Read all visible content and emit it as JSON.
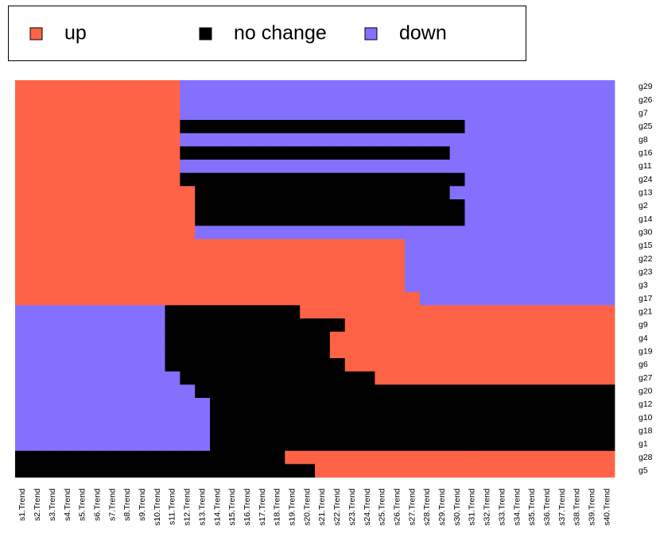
{
  "chart_data": {
    "type": "heatmap",
    "series": [
      {
        "name": "up",
        "color": "#FF6347"
      },
      {
        "name": "no change",
        "color": "#000000"
      },
      {
        "name": "down",
        "color": "#8470FF"
      }
    ],
    "rows": [
      "g29",
      "g26",
      "g7",
      "g25",
      "g8",
      "g16",
      "g11",
      "g24",
      "g13",
      "g2",
      "g14",
      "g30",
      "g15",
      "g22",
      "g23",
      "g3",
      "g17",
      "g21",
      "g9",
      "g4",
      "g19",
      "g6",
      "g27",
      "g20",
      "g12",
      "g10",
      "g18",
      "g1",
      "g28",
      "g5"
    ],
    "columns": [
      "s1.Trend",
      "s2.Trend",
      "s3.Trend",
      "s4.Trend",
      "s5.Trend",
      "s6.Trend",
      "s7.Trend",
      "s8.Trend",
      "s9.Trend",
      "s10.Trend",
      "s11.Trend",
      "s12.Trend",
      "s13.Trend",
      "s14.Trend",
      "s15.Trend",
      "s16.Trend",
      "s17.Trend",
      "s18.Trend",
      "s19.Trend",
      "s20.Trend",
      "s21.Trend",
      "s22.Trend",
      "s23.Trend",
      "s24.Trend",
      "s25.Trend",
      "s26.Trend",
      "s27.Trend",
      "s28.Trend",
      "s29.Trend",
      "s30.Trend",
      "s31.Trend",
      "s32.Trend",
      "s33.Trend",
      "s34.Trend",
      "s35.Trend",
      "s36.Trend",
      "s37.Trend",
      "s38.Trend",
      "s39.Trend",
      "s40.Trend"
    ],
    "values": [
      [
        0,
        0,
        0,
        0,
        0,
        0,
        0,
        0,
        0,
        0,
        0,
        2,
        2,
        2,
        2,
        2,
        2,
        2,
        2,
        2,
        2,
        2,
        2,
        2,
        2,
        2,
        2,
        2,
        2,
        2,
        2,
        2,
        2,
        2,
        2,
        2,
        2,
        2,
        2,
        2
      ],
      [
        0,
        0,
        0,
        0,
        0,
        0,
        0,
        0,
        0,
        0,
        0,
        2,
        2,
        2,
        2,
        2,
        2,
        2,
        2,
        2,
        2,
        2,
        2,
        2,
        2,
        2,
        2,
        2,
        2,
        2,
        2,
        2,
        2,
        2,
        2,
        2,
        2,
        2,
        2,
        2
      ],
      [
        0,
        0,
        0,
        0,
        0,
        0,
        0,
        0,
        0,
        0,
        0,
        2,
        2,
        2,
        2,
        2,
        2,
        2,
        2,
        2,
        2,
        2,
        2,
        2,
        2,
        2,
        2,
        2,
        2,
        2,
        2,
        2,
        2,
        2,
        2,
        2,
        2,
        2,
        2,
        2
      ],
      [
        0,
        0,
        0,
        0,
        0,
        0,
        0,
        0,
        0,
        0,
        0,
        1,
        1,
        1,
        1,
        1,
        1,
        1,
        1,
        1,
        1,
        1,
        1,
        1,
        1,
        1,
        1,
        1,
        1,
        1,
        2,
        2,
        2,
        2,
        2,
        2,
        2,
        2,
        2,
        2
      ],
      [
        0,
        0,
        0,
        0,
        0,
        0,
        0,
        0,
        0,
        0,
        0,
        2,
        2,
        2,
        2,
        2,
        2,
        2,
        2,
        2,
        2,
        2,
        2,
        2,
        2,
        2,
        2,
        2,
        2,
        2,
        2,
        2,
        2,
        2,
        2,
        2,
        2,
        2,
        2,
        2
      ],
      [
        0,
        0,
        0,
        0,
        0,
        0,
        0,
        0,
        0,
        0,
        0,
        1,
        1,
        1,
        1,
        1,
        1,
        1,
        1,
        1,
        1,
        1,
        1,
        1,
        1,
        1,
        1,
        1,
        1,
        2,
        2,
        2,
        2,
        2,
        2,
        2,
        2,
        2,
        2,
        2
      ],
      [
        0,
        0,
        0,
        0,
        0,
        0,
        0,
        0,
        0,
        0,
        0,
        2,
        2,
        2,
        2,
        2,
        2,
        2,
        2,
        2,
        2,
        2,
        2,
        2,
        2,
        2,
        2,
        2,
        2,
        2,
        2,
        2,
        2,
        2,
        2,
        2,
        2,
        2,
        2,
        2
      ],
      [
        0,
        0,
        0,
        0,
        0,
        0,
        0,
        0,
        0,
        0,
        0,
        1,
        1,
        1,
        1,
        1,
        1,
        1,
        1,
        1,
        1,
        1,
        1,
        1,
        1,
        1,
        1,
        1,
        1,
        1,
        2,
        2,
        2,
        2,
        2,
        2,
        2,
        2,
        2,
        2
      ],
      [
        0,
        0,
        0,
        0,
        0,
        0,
        0,
        0,
        0,
        0,
        0,
        0,
        1,
        1,
        1,
        1,
        1,
        1,
        1,
        1,
        1,
        1,
        1,
        1,
        1,
        1,
        1,
        1,
        1,
        2,
        2,
        2,
        2,
        2,
        2,
        2,
        2,
        2,
        2,
        2
      ],
      [
        0,
        0,
        0,
        0,
        0,
        0,
        0,
        0,
        0,
        0,
        0,
        0,
        1,
        1,
        1,
        1,
        1,
        1,
        1,
        1,
        1,
        1,
        1,
        1,
        1,
        1,
        1,
        1,
        1,
        1,
        2,
        2,
        2,
        2,
        2,
        2,
        2,
        2,
        2,
        2
      ],
      [
        0,
        0,
        0,
        0,
        0,
        0,
        0,
        0,
        0,
        0,
        0,
        0,
        1,
        1,
        1,
        1,
        1,
        1,
        1,
        1,
        1,
        1,
        1,
        1,
        1,
        1,
        1,
        1,
        1,
        1,
        2,
        2,
        2,
        2,
        2,
        2,
        2,
        2,
        2,
        2
      ],
      [
        0,
        0,
        0,
        0,
        0,
        0,
        0,
        0,
        0,
        0,
        0,
        0,
        2,
        2,
        2,
        2,
        2,
        2,
        2,
        2,
        2,
        2,
        2,
        2,
        2,
        2,
        2,
        2,
        2,
        2,
        2,
        2,
        2,
        2,
        2,
        2,
        2,
        2,
        2,
        2
      ],
      [
        0,
        0,
        0,
        0,
        0,
        0,
        0,
        0,
        0,
        0,
        0,
        0,
        0,
        0,
        0,
        0,
        0,
        0,
        0,
        0,
        0,
        0,
        0,
        0,
        0,
        0,
        2,
        2,
        2,
        2,
        2,
        2,
        2,
        2,
        2,
        2,
        2,
        2,
        2,
        2
      ],
      [
        0,
        0,
        0,
        0,
        0,
        0,
        0,
        0,
        0,
        0,
        0,
        0,
        0,
        0,
        0,
        0,
        0,
        0,
        0,
        0,
        0,
        0,
        0,
        0,
        0,
        0,
        2,
        2,
        2,
        2,
        2,
        2,
        2,
        2,
        2,
        2,
        2,
        2,
        2,
        2
      ],
      [
        0,
        0,
        0,
        0,
        0,
        0,
        0,
        0,
        0,
        0,
        0,
        0,
        0,
        0,
        0,
        0,
        0,
        0,
        0,
        0,
        0,
        0,
        0,
        0,
        0,
        0,
        2,
        2,
        2,
        2,
        2,
        2,
        2,
        2,
        2,
        2,
        2,
        2,
        2,
        2
      ],
      [
        0,
        0,
        0,
        0,
        0,
        0,
        0,
        0,
        0,
        0,
        0,
        0,
        0,
        0,
        0,
        0,
        0,
        0,
        0,
        0,
        0,
        0,
        0,
        0,
        0,
        0,
        2,
        2,
        2,
        2,
        2,
        2,
        2,
        2,
        2,
        2,
        2,
        2,
        2,
        2
      ],
      [
        0,
        0,
        0,
        0,
        0,
        0,
        0,
        0,
        0,
        0,
        0,
        0,
        0,
        0,
        0,
        0,
        0,
        0,
        0,
        0,
        0,
        0,
        0,
        0,
        0,
        0,
        0,
        2,
        2,
        2,
        2,
        2,
        2,
        2,
        2,
        2,
        2,
        2,
        2,
        2
      ],
      [
        2,
        2,
        2,
        2,
        2,
        2,
        2,
        2,
        2,
        2,
        1,
        1,
        1,
        1,
        1,
        1,
        1,
        1,
        1,
        0,
        0,
        0,
        0,
        0,
        0,
        0,
        0,
        0,
        0,
        0,
        0,
        0,
        0,
        0,
        0,
        0,
        0,
        0,
        0,
        0
      ],
      [
        2,
        2,
        2,
        2,
        2,
        2,
        2,
        2,
        2,
        2,
        1,
        1,
        1,
        1,
        1,
        1,
        1,
        1,
        1,
        1,
        1,
        1,
        0,
        0,
        0,
        0,
        0,
        0,
        0,
        0,
        0,
        0,
        0,
        0,
        0,
        0,
        0,
        0,
        0,
        0
      ],
      [
        2,
        2,
        2,
        2,
        2,
        2,
        2,
        2,
        2,
        2,
        1,
        1,
        1,
        1,
        1,
        1,
        1,
        1,
        1,
        1,
        1,
        0,
        0,
        0,
        0,
        0,
        0,
        0,
        0,
        0,
        0,
        0,
        0,
        0,
        0,
        0,
        0,
        0,
        0,
        0
      ],
      [
        2,
        2,
        2,
        2,
        2,
        2,
        2,
        2,
        2,
        2,
        1,
        1,
        1,
        1,
        1,
        1,
        1,
        1,
        1,
        1,
        1,
        0,
        0,
        0,
        0,
        0,
        0,
        0,
        0,
        0,
        0,
        0,
        0,
        0,
        0,
        0,
        0,
        0,
        0,
        0
      ],
      [
        2,
        2,
        2,
        2,
        2,
        2,
        2,
        2,
        2,
        2,
        1,
        1,
        1,
        1,
        1,
        1,
        1,
        1,
        1,
        1,
        1,
        1,
        0,
        0,
        0,
        0,
        0,
        0,
        0,
        0,
        0,
        0,
        0,
        0,
        0,
        0,
        0,
        0,
        0,
        0
      ],
      [
        2,
        2,
        2,
        2,
        2,
        2,
        2,
        2,
        2,
        2,
        2,
        1,
        1,
        1,
        1,
        1,
        1,
        1,
        1,
        1,
        1,
        1,
        1,
        1,
        0,
        0,
        0,
        0,
        0,
        0,
        0,
        0,
        0,
        0,
        0,
        0,
        0,
        0,
        0,
        0
      ],
      [
        2,
        2,
        2,
        2,
        2,
        2,
        2,
        2,
        2,
        2,
        2,
        2,
        1,
        1,
        1,
        1,
        1,
        1,
        1,
        1,
        1,
        1,
        1,
        1,
        1,
        1,
        1,
        1,
        1,
        1,
        1,
        1,
        1,
        1,
        1,
        1,
        1,
        1,
        1,
        1
      ],
      [
        2,
        2,
        2,
        2,
        2,
        2,
        2,
        2,
        2,
        2,
        2,
        2,
        2,
        1,
        1,
        1,
        1,
        1,
        1,
        1,
        1,
        1,
        1,
        1,
        1,
        1,
        1,
        1,
        1,
        1,
        1,
        1,
        1,
        1,
        1,
        1,
        1,
        1,
        1,
        1
      ],
      [
        2,
        2,
        2,
        2,
        2,
        2,
        2,
        2,
        2,
        2,
        2,
        2,
        2,
        1,
        1,
        1,
        1,
        1,
        1,
        1,
        1,
        1,
        1,
        1,
        1,
        1,
        1,
        1,
        1,
        1,
        1,
        1,
        1,
        1,
        1,
        1,
        1,
        1,
        1,
        1
      ],
      [
        2,
        2,
        2,
        2,
        2,
        2,
        2,
        2,
        2,
        2,
        2,
        2,
        2,
        1,
        1,
        1,
        1,
        1,
        1,
        1,
        1,
        1,
        1,
        1,
        1,
        1,
        1,
        1,
        1,
        1,
        1,
        1,
        1,
        1,
        1,
        1,
        1,
        1,
        1,
        1
      ],
      [
        2,
        2,
        2,
        2,
        2,
        2,
        2,
        2,
        2,
        2,
        2,
        2,
        2,
        1,
        1,
        1,
        1,
        1,
        1,
        1,
        1,
        1,
        1,
        1,
        1,
        1,
        1,
        1,
        1,
        1,
        1,
        1,
        1,
        1,
        1,
        1,
        1,
        1,
        1,
        1
      ],
      [
        1,
        1,
        1,
        1,
        1,
        1,
        1,
        1,
        1,
        1,
        1,
        1,
        1,
        1,
        1,
        1,
        1,
        1,
        0,
        0,
        0,
        0,
        0,
        0,
        0,
        0,
        0,
        0,
        0,
        0,
        0,
        0,
        0,
        0,
        0,
        0,
        0,
        0,
        0,
        0
      ],
      [
        1,
        1,
        1,
        1,
        1,
        1,
        1,
        1,
        1,
        1,
        1,
        1,
        1,
        1,
        1,
        1,
        1,
        1,
        1,
        1,
        0,
        0,
        0,
        0,
        0,
        0,
        0,
        0,
        0,
        0,
        0,
        0,
        0,
        0,
        0,
        0,
        0,
        0,
        0,
        0
      ]
    ]
  }
}
